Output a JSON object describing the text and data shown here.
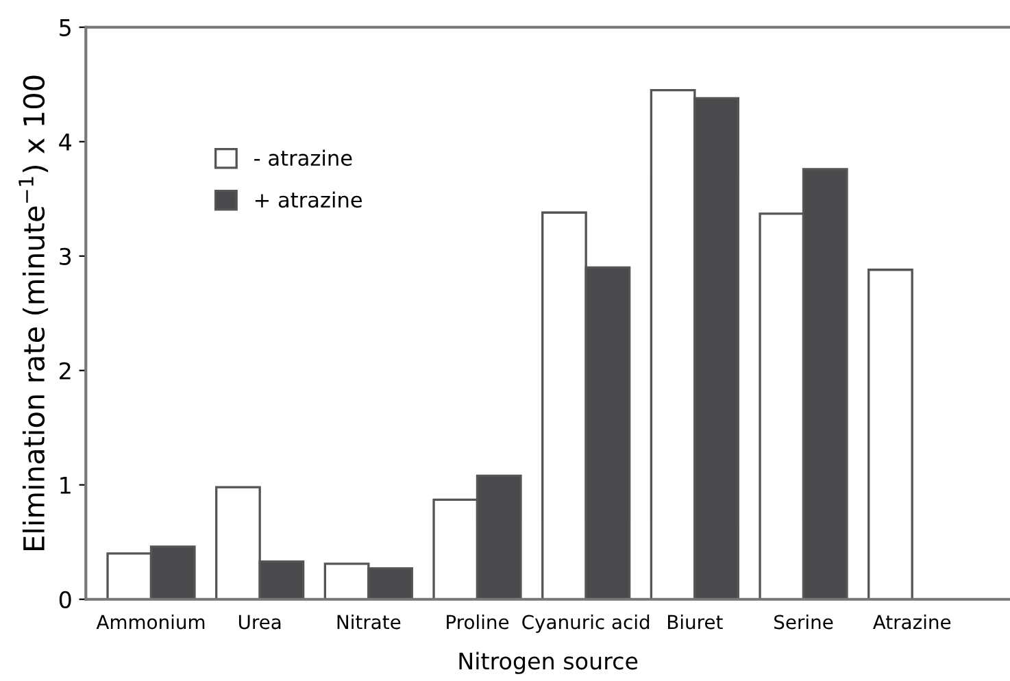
{
  "chart_data": {
    "type": "bar",
    "xlabel": "Nitrogen source",
    "ylabel": "Elimination rate (minute$^{−1}$) x 100",
    "categories": [
      "Ammonium",
      "Urea",
      "Nitrate",
      "Proline",
      "Cyanuric acid",
      "Biuret",
      "Serine",
      "Atrazine"
    ],
    "series": [
      {
        "name": "- atrazine",
        "color": "#ffffff",
        "values": [
          0.4,
          0.98,
          0.31,
          0.87,
          3.38,
          4.45,
          3.37,
          2.88
        ]
      },
      {
        "name": "+ atrazine",
        "color": "#4a4a4c",
        "values": [
          0.46,
          0.33,
          0.27,
          1.08,
          2.9,
          4.38,
          3.76,
          null
        ]
      }
    ],
    "ylim": [
      0,
      5
    ],
    "yticks": [
      0,
      1,
      2,
      3,
      4,
      5
    ],
    "grid": false,
    "legend": "top left"
  }
}
